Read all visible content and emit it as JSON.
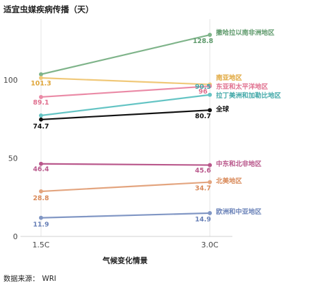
{
  "chart_data": {
    "type": "line",
    "title": "适宜虫媒疾病传播（天）",
    "xlabel": "气候变化情景",
    "ylabel": "",
    "categories": [
      "1.5C",
      "3.0C"
    ],
    "ylim": [
      0,
      140
    ],
    "yticks": [
      0,
      50,
      100
    ],
    "grid": false,
    "series": [
      {
        "name": "撒哈拉以南非洲地区",
        "values": [
          103.6,
          128.8
        ],
        "color": "#7fb48a",
        "show_labels": [
          false,
          true
        ],
        "label_color": "#5f9a6c",
        "name_color": "#5f9a6c"
      },
      {
        "name": "南亚地区",
        "values": [
          101.3,
          97.1
        ],
        "color": "#f0c878",
        "show_labels": [
          true,
          false
        ],
        "label_color": "#e0a63a",
        "name_color": "#e0a63a"
      },
      {
        "name": "东亚和太平洋地区",
        "values": [
          89.1,
          96.0
        ],
        "color": "#ea8aa6",
        "show_labels": [
          true,
          true
        ],
        "label_color": "#e0708f",
        "name_color": "#e0708f"
      },
      {
        "name": "拉丁美洲和加勒比地区",
        "values": [
          77.3,
          90.5
        ],
        "color": "#64c4c4",
        "show_labels": [
          false,
          true
        ],
        "label_color": "#43a9a9",
        "name_color": "#43a9a9"
      },
      {
        "name": "全球",
        "values": [
          74.7,
          80.7
        ],
        "color": "#111111",
        "show_labels": [
          true,
          true
        ],
        "label_color": "#111111",
        "name_color": "#111111"
      },
      {
        "name": "中东和北非地区",
        "values": [
          46.4,
          45.6
        ],
        "color": "#b9578b",
        "show_labels": [
          true,
          true
        ],
        "label_color": "#b9578b",
        "name_color": "#b9578b"
      },
      {
        "name": "北美地区",
        "values": [
          28.8,
          34.7
        ],
        "color": "#e3a47e",
        "show_labels": [
          true,
          true
        ],
        "label_color": "#d98a5a",
        "name_color": "#d98a5a"
      },
      {
        "name": "欧洲和中亚地区",
        "values": [
          11.9,
          14.9
        ],
        "color": "#8096c4",
        "show_labels": [
          true,
          true
        ],
        "label_color": "#6a82b8",
        "name_color": "#6a82b8"
      }
    ]
  },
  "source": {
    "label": "数据来源：",
    "value": "WRI"
  }
}
